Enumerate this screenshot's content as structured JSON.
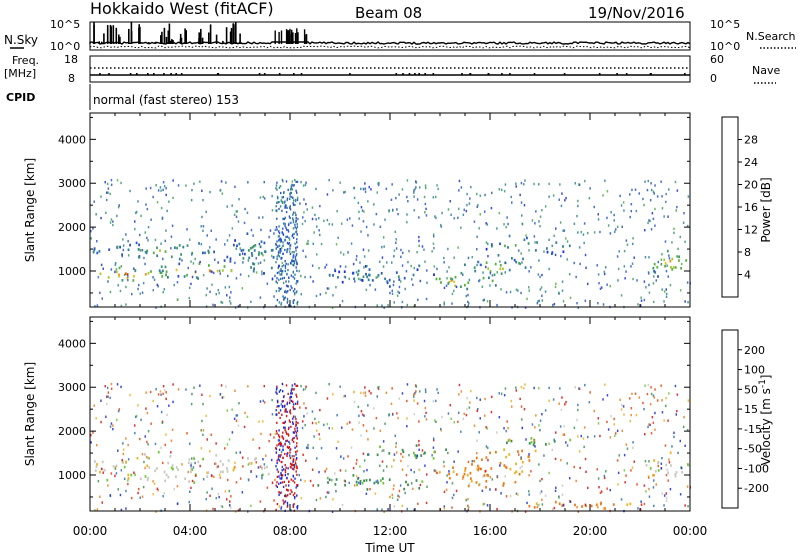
{
  "header": {
    "station": "Hokkaido West (fitACF)",
    "beam": "Beam 08",
    "date": "19/Nov/2016"
  },
  "aux": {
    "nsky_label": "N.Sky",
    "nsearch_label": "N.Search",
    "noise_ticks": [
      "10^5",
      "10^0"
    ],
    "freq_label": "Freq.",
    "freq_unit": "[MHz]",
    "freq_ticks": [
      "18",
      "8"
    ],
    "nave_label": "Nave",
    "nave_ticks": [
      "60",
      "0"
    ],
    "cpid_label": "CPID",
    "cpid_text": "normal (fast stereo) 153"
  },
  "panels": {
    "ylabel": "Slant Range [km]",
    "xlabel": "Time UT",
    "yticks": [
      "4000",
      "3000",
      "2000",
      "1000"
    ],
    "xticks": [
      "00:00",
      "04:00",
      "08:00",
      "12:00",
      "16:00",
      "20:00",
      "00:00"
    ],
    "power_label": "Power [dB]",
    "power_ticks": [
      "28",
      "24",
      "20",
      "16",
      "12",
      "8",
      "4"
    ],
    "velocity_label_main": "Velocity [m s",
    "velocity_label_exp": "-1",
    "velocity_label_close": "]",
    "velocity_ticks": [
      "200",
      "100",
      "50",
      "15",
      "-15",
      "-50",
      "-100",
      "-200"
    ]
  },
  "chart_data": [
    {
      "type": "heatmap",
      "title": "Power",
      "xlabel": "Time UT",
      "ylabel": "Slant Range [km]",
      "xlim_hours": [
        0,
        24
      ],
      "ylim": [
        180,
        4600
      ],
      "colorbar": {
        "label": "Power [dB]",
        "range": [
          0,
          32
        ],
        "ticks": [
          4,
          8,
          12,
          16,
          20,
          24,
          28
        ]
      },
      "blobs": [
        {
          "t": 1.5,
          "r": 950,
          "dt": 1.8,
          "dr": 150,
          "v": 26
        },
        {
          "t": 4.5,
          "r": 1050,
          "dt": 2.0,
          "dr": 200,
          "v": 24
        },
        {
          "t": 3.0,
          "r": 1500,
          "dt": 3.5,
          "dr": 200,
          "v": 13
        },
        {
          "t": 6.5,
          "r": 1450,
          "dt": 1.2,
          "dr": 500,
          "v": 11
        },
        {
          "t": 14.8,
          "r": 800,
          "dt": 1.5,
          "dr": 180,
          "v": 22
        },
        {
          "t": 16.2,
          "r": 1150,
          "dt": 1.3,
          "dr": 300,
          "v": 18
        },
        {
          "t": 17.5,
          "r": 1600,
          "dt": 1.7,
          "dr": 200,
          "v": 13
        },
        {
          "t": 11.5,
          "r": 900,
          "dt": 2.0,
          "dr": 250,
          "v": 8
        },
        {
          "t": 23.2,
          "r": 1200,
          "dt": 0.9,
          "dr": 350,
          "v": 21
        }
      ]
    },
    {
      "type": "heatmap",
      "title": "Velocity",
      "xlabel": "Time UT",
      "ylabel": "Slant Range [km]",
      "xlim_hours": [
        0,
        24
      ],
      "ylim": [
        180,
        4600
      ],
      "colorbar": {
        "label": "Velocity [m s-1]",
        "range": [
          -200,
          200
        ],
        "ticks": [
          -200,
          -100,
          -50,
          -15,
          15,
          50,
          100,
          200
        ]
      },
      "blobs": [
        {
          "t": 3.5,
          "r": 1200,
          "dt": 4.0,
          "dr": 350,
          "v": 0
        },
        {
          "t": 11.0,
          "r": 850,
          "dt": 2.5,
          "dr": 200,
          "v": 40
        },
        {
          "t": 13.0,
          "r": 1550,
          "dt": 2.0,
          "dr": 150,
          "v": 40
        },
        {
          "t": 15.5,
          "r": 1100,
          "dt": 1.8,
          "dr": 350,
          "v": -60
        },
        {
          "t": 17.0,
          "r": 1500,
          "dt": 1.2,
          "dr": 200,
          "v": -50
        },
        {
          "t": 18.0,
          "r": 1750,
          "dt": 1.5,
          "dr": 120,
          "v": 40
        },
        {
          "t": 23.2,
          "r": 1200,
          "dt": 1.0,
          "dr": 350,
          "v": 0
        },
        {
          "t": 19.5,
          "r": 350,
          "dt": 2.5,
          "dr": 100,
          "v": -60
        }
      ]
    }
  ]
}
